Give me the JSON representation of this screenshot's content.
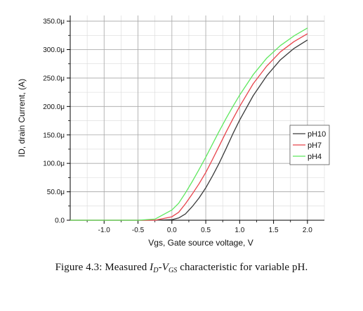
{
  "chart_data": {
    "type": "line",
    "xlabel": "Vgs, Gate source voltage, V",
    "ylabel": "ID, drain Current, (A)",
    "xlim": [
      -1.5,
      2.25
    ],
    "ylim": [
      0,
      360
    ],
    "xticks": [
      {
        "value": -1.0,
        "label": "-1.0"
      },
      {
        "value": -0.5,
        "label": "-0.5"
      },
      {
        "value": 0.0,
        "label": "0.0"
      },
      {
        "value": 0.5,
        "label": "0.5"
      },
      {
        "value": 1.0,
        "label": "1.0"
      },
      {
        "value": 1.5,
        "label": "1.5"
      },
      {
        "value": 2.0,
        "label": "2.0"
      }
    ],
    "yticks": [
      {
        "value": 0,
        "label": "0.0"
      },
      {
        "value": 50,
        "label": "50.0μ"
      },
      {
        "value": 100,
        "label": "100.0μ"
      },
      {
        "value": 150,
        "label": "150.0μ"
      },
      {
        "value": 200,
        "label": "200.0μ"
      },
      {
        "value": 250,
        "label": "250.0μ"
      },
      {
        "value": 300,
        "label": "300.0μ"
      },
      {
        "value": 350,
        "label": "350.0μ"
      }
    ],
    "grid": true,
    "legend_position": "right",
    "x": [
      -1.5,
      -1.0,
      -0.5,
      -0.25,
      0.0,
      0.1,
      0.2,
      0.3,
      0.4,
      0.5,
      0.6,
      0.7,
      0.8,
      0.9,
      1.0,
      1.2,
      1.4,
      1.6,
      1.8,
      2.0
    ],
    "series": [
      {
        "name": "pH10",
        "color": "#3a3a3a",
        "values": [
          0,
          0,
          0,
          0,
          1,
          4,
          11,
          24,
          39,
          57,
          78,
          101,
          126,
          152,
          176,
          219,
          254,
          282,
          302,
          317
        ]
      },
      {
        "name": "pH7",
        "color": "#e8434b",
        "values": [
          0,
          0,
          0,
          0,
          6,
          14,
          29,
          46,
          64,
          84,
          107,
          131,
          155,
          178,
          200,
          240,
          271,
          296,
          314,
          328
        ]
      },
      {
        "name": "pH4",
        "color": "#5ee85e",
        "values": [
          0,
          0,
          0,
          2,
          18,
          30,
          48,
          68,
          89,
          111,
          134,
          157,
          179,
          200,
          220,
          256,
          285,
          307,
          324,
          338
        ]
      }
    ]
  },
  "caption": {
    "prefix": "Figure 4.3: Measured ",
    "var1": "I",
    "sub1": "D",
    "dash": "-",
    "var2": "V",
    "sub2": "GS",
    "suffix": " characteristic for variable pH."
  }
}
